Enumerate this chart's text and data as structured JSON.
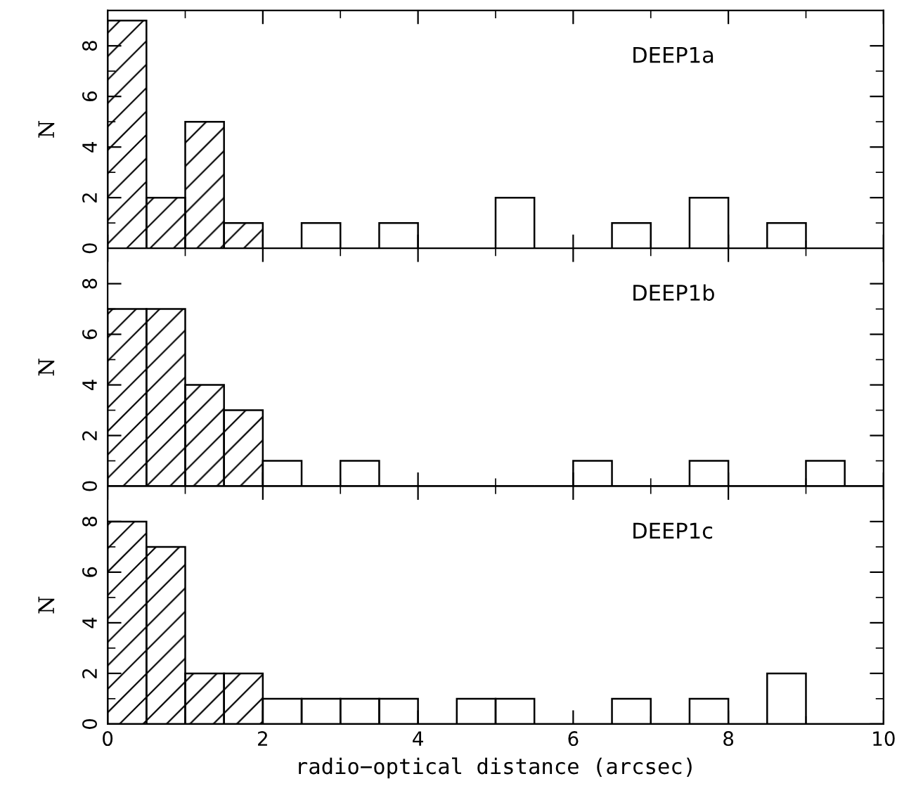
{
  "chart_data": [
    {
      "type": "histogram",
      "annotations": [
        "DEEP1a"
      ],
      "ylabel": "N",
      "bins": [
        0,
        0.5,
        1,
        1.5,
        2,
        2.5,
        3,
        3.5,
        4,
        4.5,
        5,
        5.5,
        6,
        6.5,
        7,
        7.5,
        8,
        8.5,
        9,
        9.5,
        10
      ],
      "series": [
        {
          "color": "#000000",
          "values": [
            9,
            2,
            5,
            1,
            null,
            null,
            null,
            null,
            null,
            null,
            null,
            null,
            null,
            null,
            null,
            null,
            null,
            null,
            null,
            null
          ]
        },
        {
          "color": "#000000",
          "values": [
            null,
            null,
            null,
            null,
            0,
            1,
            0,
            1,
            0,
            0,
            2,
            0,
            0,
            1,
            0,
            2,
            0,
            1,
            0,
            0
          ]
        }
      ],
      "xlim": [
        0,
        10
      ],
      "ylim": [
        0,
        9.4
      ],
      "xticks": [
        0,
        2,
        4,
        6,
        8,
        10
      ],
      "yticks": [
        0,
        2,
        4,
        6,
        8
      ],
      "tick_labels": "y",
      "grid": false,
      "legend": false
    },
    {
      "type": "histogram",
      "annotations": [
        "DEEP1b"
      ],
      "ylabel": "N",
      "bins": [
        0,
        0.5,
        1,
        1.5,
        2,
        2.5,
        3,
        3.5,
        4,
        4.5,
        5,
        5.5,
        6,
        6.5,
        7,
        7.5,
        8,
        8.5,
        9,
        9.5,
        10
      ],
      "series": [
        {
          "color": "#000000",
          "values": [
            7,
            7,
            4,
            3,
            null,
            null,
            null,
            null,
            null,
            null,
            null,
            null,
            null,
            null,
            null,
            null,
            null,
            null,
            null,
            null
          ]
        },
        {
          "color": "#000000",
          "values": [
            null,
            null,
            null,
            null,
            1,
            0,
            1,
            0,
            0,
            0,
            0,
            0,
            1,
            0,
            0,
            1,
            0,
            0,
            1,
            0
          ]
        }
      ],
      "xlim": [
        0,
        10
      ],
      "ylim": [
        0,
        9.4
      ],
      "xticks": [
        0,
        2,
        4,
        6,
        8,
        10
      ],
      "yticks": [
        0,
        2,
        4,
        6,
        8
      ],
      "tick_labels": "y",
      "grid": false,
      "legend": false
    },
    {
      "type": "histogram",
      "annotations": [
        "DEEP1c"
      ],
      "ylabel": "N",
      "xlabel": "radio−optical distance (arcsec)",
      "bins": [
        0,
        0.5,
        1,
        1.5,
        2,
        2.5,
        3,
        3.5,
        4,
        4.5,
        5,
        5.5,
        6,
        6.5,
        7,
        7.5,
        8,
        8.5,
        9,
        9.5,
        10
      ],
      "series": [
        {
          "color": "#000000",
          "values": [
            8,
            7,
            2,
            2,
            null,
            null,
            null,
            null,
            null,
            null,
            null,
            null,
            null,
            null,
            null,
            null,
            null,
            null,
            null,
            null
          ]
        },
        {
          "color": "#000000",
          "values": [
            null,
            null,
            null,
            null,
            1,
            1,
            1,
            1,
            0,
            1,
            1,
            0,
            0,
            1,
            0,
            1,
            0,
            2,
            0,
            0
          ]
        }
      ],
      "xlim": [
        0,
        10
      ],
      "ylim": [
        0,
        9.4
      ],
      "xticks": [
        0,
        2,
        4,
        6,
        8,
        10
      ],
      "yticks": [
        0,
        2,
        4,
        6,
        8
      ],
      "grid": false,
      "legend": false
    }
  ]
}
